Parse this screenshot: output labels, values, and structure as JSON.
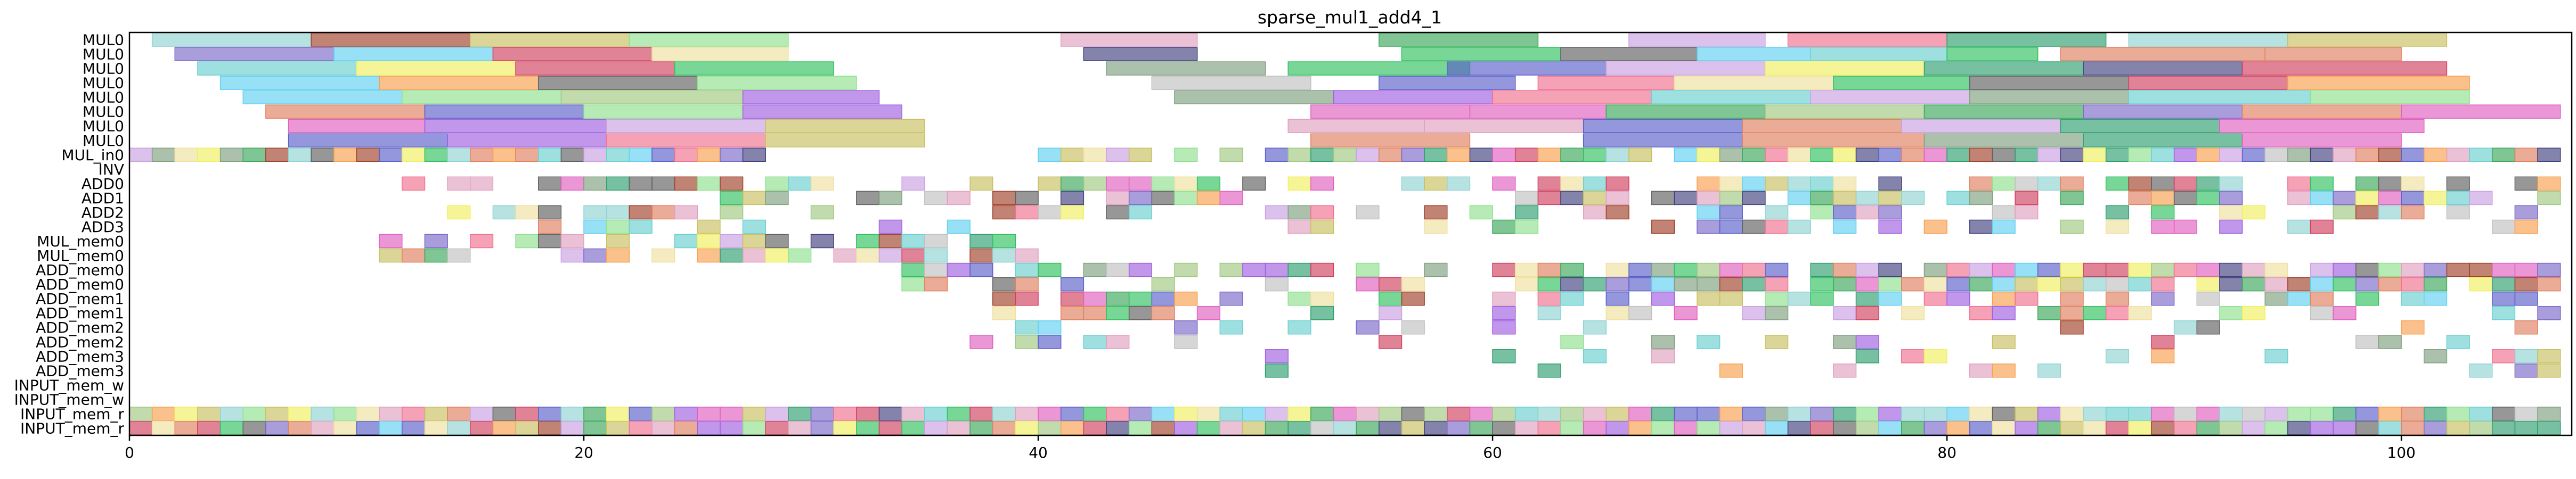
{
  "chart_data": {
    "type": "gantt",
    "title": "sparse_mul1_add4_1",
    "xlabel": "",
    "ylabel": "",
    "xlim": [
      0,
      107.5
    ],
    "xticks": [
      0,
      20,
      40,
      60,
      80,
      100
    ],
    "grid": false,
    "legend": "none",
    "rows": [
      "MUL0",
      "MUL0",
      "MUL0",
      "MUL0",
      "MUL0",
      "MUL0",
      "MUL0",
      "MUL0",
      "MUL_in0",
      "INV",
      "ADD0",
      "ADD1",
      "ADD2",
      "ADD3",
      "MUL_mem0",
      "MUL_mem0",
      "ADD_mem0",
      "ADD_mem0",
      "ADD_mem1",
      "ADD_mem1",
      "ADD_mem2",
      "ADD_mem2",
      "ADD_mem3",
      "ADD_mem3",
      "INPUT_mem_w",
      "INPUT_mem_w",
      "INPUT_mem_r",
      "INPUT_mem_r"
    ],
    "palette": [
      "#8fd3d3",
      "#a0412a",
      "#c8c060",
      "#8fe08f",
      "#e0a0c0",
      "#3aa85a",
      "#2e9e6e",
      "#c8a0e0",
      "#6ad0d0",
      "#7b68c8",
      "#f07090",
      "#d04060",
      "#5a60c8",
      "#f0e0a0",
      "#60d0f0",
      "#404080",
      "#a0c880",
      "#606060",
      "#a060e0",
      "#e08060",
      "#30c060",
      "#f8a050",
      "#e060c0",
      "#f0f060",
      "#c0c0c0",
      "#80a080"
    ],
    "bars": [
      [
        0,
        1,
        8,
        0
      ],
      [
        0,
        8,
        15,
        1
      ],
      [
        0,
        15,
        22,
        2
      ],
      [
        0,
        22,
        29,
        3
      ],
      [
        0,
        41,
        47,
        4
      ],
      [
        0,
        55,
        62,
        5
      ],
      [
        0,
        66,
        72,
        7
      ],
      [
        0,
        73,
        80,
        10
      ],
      [
        0,
        80,
        87,
        6
      ],
      [
        0,
        88,
        95,
        0
      ],
      [
        0,
        95,
        102,
        2
      ],
      [
        1,
        2,
        9,
        9
      ],
      [
        1,
        9,
        16,
        14
      ],
      [
        1,
        16,
        23,
        11
      ],
      [
        1,
        23,
        29,
        13
      ],
      [
        1,
        42,
        47,
        15
      ],
      [
        1,
        56,
        63,
        20
      ],
      [
        1,
        63,
        69,
        17
      ],
      [
        1,
        69,
        74,
        14
      ],
      [
        1,
        74,
        80,
        8
      ],
      [
        1,
        80,
        84,
        20
      ],
      [
        1,
        85,
        94,
        19
      ],
      [
        1,
        94,
        100,
        19
      ],
      [
        2,
        3,
        10,
        8
      ],
      [
        2,
        10,
        17,
        23
      ],
      [
        2,
        17,
        24,
        11
      ],
      [
        2,
        24,
        31,
        20
      ],
      [
        2,
        43,
        50,
        25
      ],
      [
        2,
        51,
        59,
        20
      ],
      [
        2,
        58,
        65,
        12
      ],
      [
        2,
        65,
        72,
        7
      ],
      [
        2,
        72,
        79,
        23
      ],
      [
        2,
        79,
        86,
        6
      ],
      [
        2,
        86,
        93,
        15
      ],
      [
        2,
        93,
        102,
        11
      ],
      [
        3,
        4,
        11,
        14
      ],
      [
        3,
        11,
        18,
        21
      ],
      [
        3,
        18,
        25,
        17
      ],
      [
        3,
        25,
        32,
        3
      ],
      [
        3,
        45,
        52,
        24
      ],
      [
        3,
        55,
        61,
        12
      ],
      [
        3,
        62,
        68,
        10
      ],
      [
        3,
        68,
        75,
        13
      ],
      [
        3,
        75,
        81,
        20
      ],
      [
        3,
        81,
        88,
        17
      ],
      [
        3,
        88,
        95,
        11
      ],
      [
        3,
        95,
        103,
        21
      ],
      [
        4,
        5,
        12,
        14
      ],
      [
        4,
        12,
        19,
        3
      ],
      [
        4,
        19,
        27,
        16
      ],
      [
        4,
        27,
        33,
        18
      ],
      [
        4,
        46,
        53,
        25
      ],
      [
        4,
        53,
        60,
        18
      ],
      [
        4,
        60,
        67,
        10
      ],
      [
        4,
        67,
        74,
        8
      ],
      [
        4,
        74,
        81,
        7
      ],
      [
        4,
        81,
        88,
        25
      ],
      [
        4,
        88,
        96,
        8
      ],
      [
        4,
        96,
        103,
        3
      ],
      [
        5,
        6,
        13,
        19
      ],
      [
        5,
        13,
        20,
        12
      ],
      [
        5,
        20,
        27,
        3
      ],
      [
        5,
        27,
        34,
        18
      ],
      [
        5,
        52,
        59,
        22
      ],
      [
        5,
        59,
        65,
        22
      ],
      [
        5,
        65,
        72,
        5
      ],
      [
        5,
        72,
        79,
        16
      ],
      [
        5,
        79,
        86,
        5
      ],
      [
        5,
        86,
        93,
        9
      ],
      [
        5,
        93,
        100,
        19
      ],
      [
        5,
        100,
        107,
        22
      ],
      [
        6,
        7,
        13,
        22
      ],
      [
        6,
        13,
        21,
        18
      ],
      [
        6,
        21,
        28,
        7
      ],
      [
        6,
        28,
        35,
        2
      ],
      [
        6,
        51,
        57,
        4
      ],
      [
        6,
        57,
        64,
        4
      ],
      [
        6,
        64,
        71,
        12
      ],
      [
        6,
        71,
        78,
        19
      ],
      [
        6,
        78,
        85,
        7
      ],
      [
        6,
        85,
        92,
        6
      ],
      [
        6,
        92,
        101,
        22
      ],
      [
        7,
        7,
        14,
        12
      ],
      [
        7,
        14,
        21,
        18
      ],
      [
        7,
        21,
        28,
        10
      ],
      [
        7,
        28,
        35,
        2
      ],
      [
        7,
        52,
        59,
        19
      ],
      [
        7,
        64,
        71,
        12
      ],
      [
        7,
        71,
        79,
        19
      ],
      [
        7,
        79,
        86,
        25
      ],
      [
        7,
        86,
        93,
        6
      ],
      [
        7,
        93,
        100,
        22
      ]
    ]
  }
}
